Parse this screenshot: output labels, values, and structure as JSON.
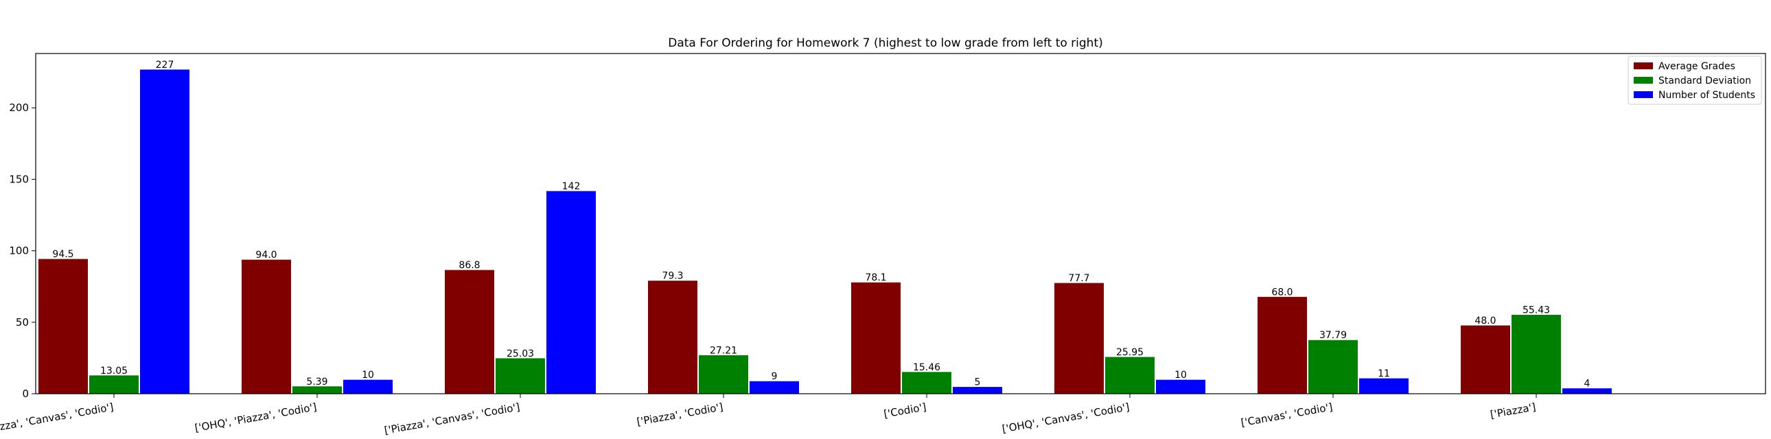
{
  "chart_data": {
    "type": "bar",
    "title": "Data For Ordering for Homework 7 (highest to low grade from left to right)",
    "xlabel": "",
    "ylabel": "",
    "ylim": [
      0,
      238
    ],
    "yticks": [
      0,
      50,
      100,
      150,
      200
    ],
    "categories": [
      "['OHQ', 'Piazza', 'Canvas', 'Codio']",
      "['OHQ', 'Piazza', 'Codio']",
      "['Piazza', 'Canvas', 'Codio']",
      "['Piazza', 'Codio']",
      "['Codio']",
      "['OHQ', 'Canvas', 'Codio']",
      "['Canvas', 'Codio']",
      "['Piazza']"
    ],
    "series": [
      {
        "name": "Average Grades",
        "color": "#800000",
        "values": [
          94.5,
          94.0,
          86.8,
          79.3,
          78.1,
          77.7,
          68.0,
          48.0
        ],
        "labels": [
          "94.5",
          "94.0",
          "86.8",
          "79.3",
          "78.1",
          "77.7",
          "68.0",
          "48.0"
        ]
      },
      {
        "name": "Standard Deviation",
        "color": "#008000",
        "values": [
          13.05,
          5.39,
          25.03,
          27.21,
          15.46,
          25.95,
          37.79,
          55.43
        ],
        "labels": [
          "13.05",
          "5.39",
          "25.03",
          "27.21",
          "15.46",
          "25.95",
          "37.79",
          "55.43"
        ]
      },
      {
        "name": "Number of Students",
        "color": "#0000ff",
        "values": [
          227,
          10,
          142,
          9,
          5,
          10,
          11,
          4
        ],
        "labels": [
          "227",
          "10",
          "142",
          "9",
          "5",
          "10",
          "11",
          "4"
        ]
      }
    ],
    "grid": false,
    "legend": "top-right"
  }
}
